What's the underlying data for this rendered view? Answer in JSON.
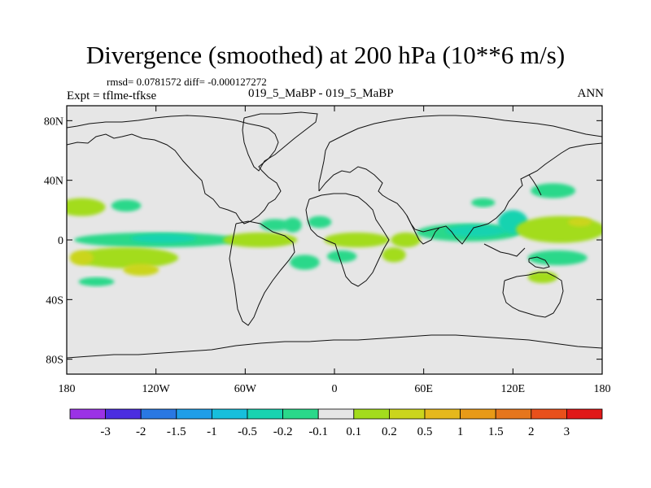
{
  "chart_data": {
    "type": "contour-map",
    "title": "Divergence (smoothed) at 200 hPa (10**6 m/s)",
    "stats": "rmsd= 0.0781572 diff= -0.000127272",
    "case": "019_5_MaBP - 019_5_MaBP",
    "expt": "Expt = tflme-tfkse",
    "season": "ANN",
    "lon_range": [
      -180,
      180
    ],
    "lat_range": [
      -90,
      90
    ],
    "x_ticks": [
      {
        "value": -180,
        "label": "180"
      },
      {
        "value": -120,
        "label": "120W"
      },
      {
        "value": -60,
        "label": "60W"
      },
      {
        "value": 0,
        "label": "0"
      },
      {
        "value": 60,
        "label": "60E"
      },
      {
        "value": 120,
        "label": "120E"
      },
      {
        "value": 180,
        "label": "180"
      }
    ],
    "y_ticks": [
      {
        "value": 80,
        "label": "80N"
      },
      {
        "value": 40,
        "label": "40N"
      },
      {
        "value": 0,
        "label": "0"
      },
      {
        "value": -40,
        "label": "40S"
      },
      {
        "value": -80,
        "label": "80S"
      }
    ],
    "colorbar": {
      "colors": [
        "#9b32e6",
        "#4b2de0",
        "#2a78e3",
        "#1f9ee8",
        "#17bfdc",
        "#19d3b0",
        "#2ad88a",
        "#e6e6e6",
        "#a3dc1c",
        "#cbd51d",
        "#e6b81c",
        "#e89a17",
        "#e6761c",
        "#e8501b",
        "#e01818"
      ],
      "labels": [
        "-3",
        "-2",
        "-1.5",
        "-1",
        "-0.5",
        "-0.2",
        "-0.1",
        "0.1",
        "0.2",
        "0.5",
        "1",
        "1.5",
        "2",
        "3"
      ]
    },
    "patches": [
      {
        "lon": -170,
        "lat": 22,
        "rlon": 16,
        "rlat": 6,
        "level": "pos-0.2"
      },
      {
        "lon": -140,
        "lat": 23,
        "rlon": 10,
        "rlat": 4,
        "level": "neg-0.1"
      },
      {
        "lon": -120,
        "lat": 0,
        "rlon": 55,
        "rlat": 5,
        "level": "neg-0.1"
      },
      {
        "lon": -115,
        "lat": 1,
        "rlon": 22,
        "rlat": 3,
        "level": "neg-0.2"
      },
      {
        "lon": -140,
        "lat": -12,
        "rlon": 35,
        "rlat": 7,
        "level": "pos-0.2"
      },
      {
        "lon": -170,
        "lat": -12,
        "rlon": 8,
        "rlat": 5,
        "level": "pos-0.5"
      },
      {
        "lon": -130,
        "lat": -20,
        "rlon": 12,
        "rlat": 4,
        "level": "pos-0.5"
      },
      {
        "lon": -160,
        "lat": -28,
        "rlon": 12,
        "rlat": 3,
        "level": "neg-0.1"
      },
      {
        "lon": -50,
        "lat": 0,
        "rlon": 25,
        "rlat": 5,
        "level": "pos-0.2"
      },
      {
        "lon": -40,
        "lat": 10,
        "rlon": 10,
        "rlat": 4,
        "level": "neg-0.1"
      },
      {
        "lon": -28,
        "lat": 10,
        "rlon": 6,
        "rlat": 5,
        "level": "neg-0.1"
      },
      {
        "lon": -10,
        "lat": 12,
        "rlon": 8,
        "rlat": 4,
        "level": "neg-0.1"
      },
      {
        "lon": 15,
        "lat": 0,
        "rlon": 22,
        "rlat": 5,
        "level": "pos-0.2"
      },
      {
        "lon": -20,
        "lat": -15,
        "rlon": 10,
        "rlat": 5,
        "level": "neg-0.1"
      },
      {
        "lon": 5,
        "lat": -11,
        "rlon": 10,
        "rlat": 4,
        "level": "neg-0.1"
      },
      {
        "lon": 40,
        "lat": -10,
        "rlon": 8,
        "rlat": 5,
        "level": "pos-0.2"
      },
      {
        "lon": 48,
        "lat": 0,
        "rlon": 10,
        "rlat": 5,
        "level": "pos-0.2"
      },
      {
        "lon": 90,
        "lat": 5,
        "rlon": 35,
        "rlat": 6,
        "level": "neg-0.1"
      },
      {
        "lon": 95,
        "lat": 6,
        "rlon": 20,
        "rlat": 4,
        "level": "neg-0.2"
      },
      {
        "lon": 120,
        "lat": 12,
        "rlon": 10,
        "rlat": 8,
        "level": "neg-0.2"
      },
      {
        "lon": 100,
        "lat": 25,
        "rlon": 8,
        "rlat": 3,
        "level": "neg-0.1"
      },
      {
        "lon": 147,
        "lat": 33,
        "rlon": 15,
        "rlat": 5,
        "level": "neg-0.1"
      },
      {
        "lon": 152,
        "lat": 7,
        "rlon": 30,
        "rlat": 9,
        "level": "pos-0.2"
      },
      {
        "lon": 165,
        "lat": 12,
        "rlon": 8,
        "rlat": 3,
        "level": "pos-0.5"
      },
      {
        "lon": 150,
        "lat": -12,
        "rlon": 20,
        "rlat": 5,
        "level": "neg-0.1"
      },
      {
        "lon": 140,
        "lat": -25,
        "rlon": 10,
        "rlat": 4,
        "level": "pos-0.2"
      }
    ]
  }
}
